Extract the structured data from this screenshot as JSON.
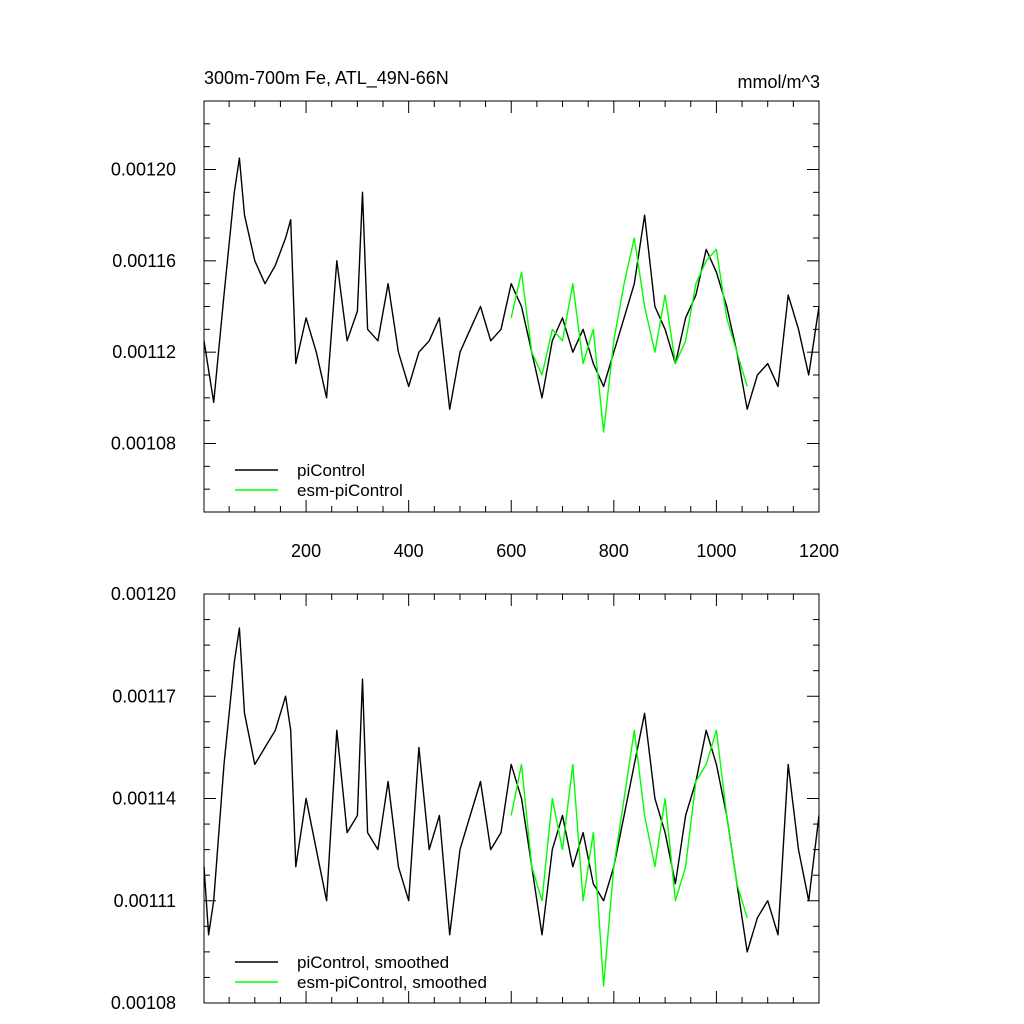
{
  "chart_data": [
    {
      "type": "line",
      "title": "300m-700m Fe, ATL_49N-66N",
      "units": "mmol/m^3",
      "xlim": [
        1,
        1200
      ],
      "ylim": [
        0.00105,
        0.00123
      ],
      "x_ticks": [
        200,
        400,
        600,
        800,
        1000,
        1200
      ],
      "x_tick_labels": [
        "200",
        "400",
        "600",
        "800",
        "1000",
        "1200"
      ],
      "y_ticks": [
        0.00108,
        0.00112,
        0.00116,
        0.0012
      ],
      "y_tick_labels": [
        "0.00108",
        "0.00112",
        "0.00116",
        "0.00120"
      ],
      "legend_position": "bottom-left",
      "series": [
        {
          "name": "piControl",
          "color": "#000000",
          "x": [
            1,
            20,
            40,
            60,
            70,
            80,
            100,
            120,
            140,
            160,
            170,
            180,
            200,
            220,
            240,
            260,
            280,
            300,
            310,
            320,
            340,
            360,
            380,
            400,
            420,
            440,
            460,
            480,
            500,
            520,
            540,
            560,
            580,
            600,
            620,
            640,
            660,
            680,
            700,
            720,
            740,
            760,
            780,
            800,
            820,
            840,
            860,
            880,
            900,
            920,
            940,
            960,
            980,
            1000,
            1020,
            1040,
            1060,
            1080,
            1100,
            1120,
            1140,
            1160,
            1180,
            1200
          ],
          "values": [
            0.001125,
            0.001098,
            0.001145,
            0.00119,
            0.001205,
            0.00118,
            0.00116,
            0.00115,
            0.001158,
            0.00117,
            0.001178,
            0.001115,
            0.001135,
            0.00112,
            0.0011,
            0.00116,
            0.001125,
            0.001138,
            0.00119,
            0.00113,
            0.001125,
            0.00115,
            0.00112,
            0.001105,
            0.00112,
            0.001125,
            0.001135,
            0.001095,
            0.00112,
            0.00113,
            0.00114,
            0.001125,
            0.00113,
            0.00115,
            0.00114,
            0.00112,
            0.0011,
            0.001125,
            0.001135,
            0.00112,
            0.00113,
            0.001115,
            0.001105,
            0.00112,
            0.001135,
            0.00115,
            0.00118,
            0.00114,
            0.00113,
            0.001115,
            0.001135,
            0.001145,
            0.001165,
            0.001155,
            0.00114,
            0.00112,
            0.001095,
            0.00111,
            0.001115,
            0.001105,
            0.001145,
            0.00113,
            0.00111,
            0.00114
          ]
        },
        {
          "name": "esm-piControl",
          "color": "#00ff00",
          "x": [
            600,
            620,
            640,
            660,
            680,
            700,
            720,
            740,
            760,
            780,
            800,
            820,
            840,
            860,
            880,
            900,
            920,
            940,
            960,
            980,
            1000,
            1020,
            1040,
            1060
          ],
          "values": [
            0.001135,
            0.001155,
            0.00112,
            0.00111,
            0.00113,
            0.001125,
            0.00115,
            0.001115,
            0.00113,
            0.001085,
            0.001125,
            0.00115,
            0.00117,
            0.00114,
            0.00112,
            0.001145,
            0.001115,
            0.001125,
            0.00115,
            0.00116,
            0.001165,
            0.001135,
            0.00112,
            0.001105
          ]
        }
      ]
    },
    {
      "type": "line",
      "title": "",
      "xlim": [
        1,
        1200
      ],
      "ylim": [
        0.00108,
        0.0012
      ],
      "y_ticks": [
        0.00108,
        0.00111,
        0.00114,
        0.00117,
        0.0012
      ],
      "y_tick_labels": [
        "0.00108",
        "0.00111",
        "0.00114",
        "0.00117",
        "0.00120"
      ],
      "legend_position": "bottom-left",
      "series": [
        {
          "name": "piControl, smoothed",
          "color": "#000000",
          "x": [
            1,
            10,
            20,
            40,
            60,
            70,
            80,
            100,
            120,
            140,
            160,
            170,
            180,
            200,
            220,
            240,
            260,
            280,
            300,
            310,
            320,
            340,
            360,
            380,
            400,
            420,
            440,
            460,
            480,
            500,
            520,
            540,
            560,
            580,
            600,
            620,
            640,
            660,
            680,
            700,
            720,
            740,
            760,
            780,
            800,
            820,
            840,
            860,
            880,
            900,
            920,
            940,
            960,
            980,
            1000,
            1020,
            1040,
            1060,
            1080,
            1100,
            1120,
            1140,
            1160,
            1180,
            1200
          ],
          "values": [
            0.00112,
            0.0011,
            0.00111,
            0.00115,
            0.00118,
            0.00119,
            0.001165,
            0.00115,
            0.001155,
            0.00116,
            0.00117,
            0.00116,
            0.00112,
            0.00114,
            0.001125,
            0.00111,
            0.00116,
            0.00113,
            0.001135,
            0.001175,
            0.00113,
            0.001125,
            0.001145,
            0.00112,
            0.00111,
            0.001155,
            0.001125,
            0.001135,
            0.0011,
            0.001125,
            0.001135,
            0.001145,
            0.001125,
            0.00113,
            0.00115,
            0.00114,
            0.00112,
            0.0011,
            0.001125,
            0.001135,
            0.00112,
            0.00113,
            0.001115,
            0.00111,
            0.00112,
            0.001135,
            0.00115,
            0.001165,
            0.00114,
            0.00113,
            0.001115,
            0.001135,
            0.001145,
            0.00116,
            0.00115,
            0.001135,
            0.001115,
            0.001095,
            0.001105,
            0.00111,
            0.0011,
            0.00115,
            0.001125,
            0.00111,
            0.001135
          ]
        },
        {
          "name": "esm-piControl, smoothed",
          "color": "#00ff00",
          "x": [
            600,
            620,
            640,
            660,
            680,
            700,
            720,
            740,
            760,
            780,
            800,
            820,
            840,
            860,
            880,
            900,
            920,
            940,
            960,
            980,
            1000,
            1020,
            1040,
            1060
          ],
          "values": [
            0.001135,
            0.00115,
            0.00112,
            0.00111,
            0.00114,
            0.001125,
            0.00115,
            0.00111,
            0.00113,
            0.001085,
            0.00112,
            0.00114,
            0.00116,
            0.001135,
            0.00112,
            0.00114,
            0.00111,
            0.00112,
            0.001145,
            0.00115,
            0.00116,
            0.001135,
            0.001115,
            0.001105
          ]
        }
      ]
    }
  ]
}
